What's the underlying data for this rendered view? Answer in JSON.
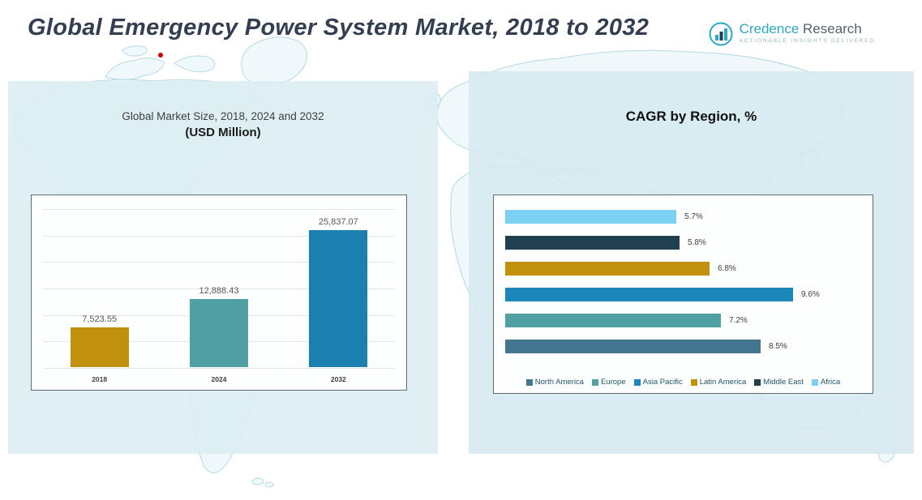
{
  "page": {
    "title": "Global Emergency Power System Market, 2018 to 2032"
  },
  "logo": {
    "brand_primary": "Credence",
    "brand_secondary": " Research",
    "tagline": "Actionable Insights Delivered",
    "icon": "bar-chart-growth-icon",
    "accent_color": "#2AA9CB"
  },
  "left_panel": {
    "subtitle_line1": "Global Market Size, 2018, 2024 and 2032",
    "subtitle_line2": "(USD Million)"
  },
  "right_panel": {
    "title": "CAGR by Region, %"
  },
  "chart_data": [
    {
      "type": "bar",
      "title": "Global Market Size, 2018, 2024 and 2032 (USD Million)",
      "categories": [
        "2018",
        "2024",
        "2032"
      ],
      "values": [
        7523.55,
        12888.43,
        25837.07
      ],
      "value_labels": [
        "7,523.55",
        "12,888.43",
        "25,837.07"
      ],
      "colors": [
        "#C1910D",
        "#4FA0A3",
        "#1B7FB0"
      ],
      "ylabel": "USD Million",
      "ylim": [
        0,
        30000
      ],
      "grid": true,
      "legend_position": "none"
    },
    {
      "type": "bar",
      "orientation": "horizontal",
      "title": "CAGR by Region, %",
      "categories_top_to_bottom": [
        "Africa",
        "Middle East",
        "Latin America",
        "Asia Pacific",
        "Europe",
        "North America"
      ],
      "values": [
        5.7,
        5.8,
        6.8,
        9.6,
        7.2,
        8.5
      ],
      "value_labels": [
        "5.7%",
        "5.8%",
        "6.8%",
        "9.6%",
        "7.2%",
        "8.5%"
      ],
      "colors": [
        "#7CD1F3",
        "#20404F",
        "#C1910D",
        "#1C87BA",
        "#4FA0A3",
        "#44758F"
      ],
      "xlim": [
        0,
        10.5
      ],
      "grid": false,
      "legend_position": "bottom",
      "legend": [
        {
          "label": "North America",
          "color": "#44758F"
        },
        {
          "label": "Europe",
          "color": "#4FA0A3"
        },
        {
          "label": "Asia Pacific",
          "color": "#1C87BA"
        },
        {
          "label": "Latin America",
          "color": "#C1910D"
        },
        {
          "label": "Middle East",
          "color": "#20404F"
        },
        {
          "label": "Africa",
          "color": "#7CD1F3"
        }
      ]
    }
  ]
}
